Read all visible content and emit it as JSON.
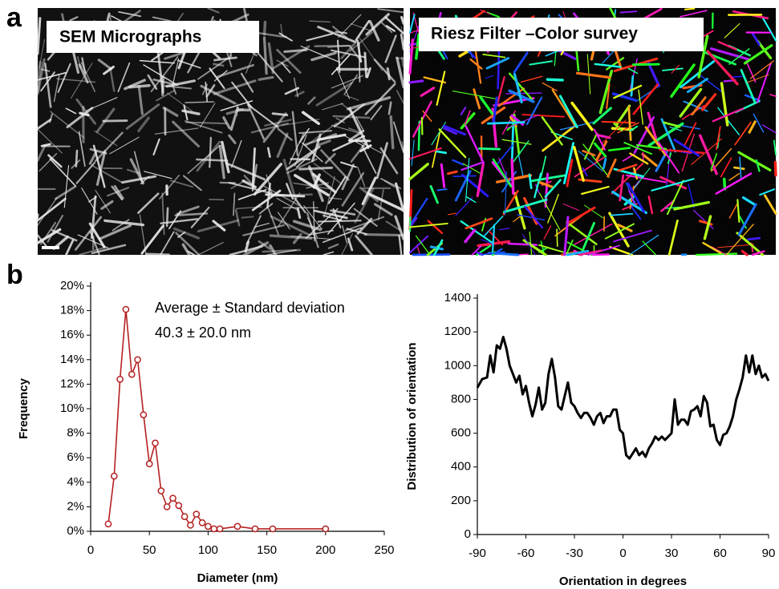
{
  "panels": {
    "a": {
      "label": "a",
      "images": [
        {
          "caption": "SEM Micrographs"
        },
        {
          "caption": "Riesz Filter –Color survey"
        }
      ]
    },
    "b": {
      "label": "b"
    }
  },
  "chart_data": [
    {
      "type": "line",
      "markers": true,
      "color": "#b52020",
      "xlabel": "Diameter (nm)",
      "ylabel": "Frequency",
      "annotations": [
        "Average ± Standard deviation",
        "40.3 ± 20.0 nm"
      ],
      "x": [
        15,
        20,
        25,
        30,
        35,
        40,
        45,
        50,
        55,
        60,
        65,
        70,
        75,
        80,
        85,
        90,
        95,
        100,
        105,
        110,
        125,
        140,
        155,
        200
      ],
      "values": [
        0.6,
        4.5,
        12.4,
        18.1,
        12.8,
        14.0,
        9.5,
        5.5,
        7.2,
        3.3,
        2.0,
        2.7,
        2.1,
        1.2,
        0.5,
        1.4,
        0.7,
        0.4,
        0.2,
        0.2,
        0.4,
        0.2,
        0.2,
        0.2
      ],
      "xlim": [
        0,
        250
      ],
      "xticks": [
        0,
        50,
        100,
        150,
        200,
        250
      ],
      "ylim": [
        0,
        20
      ],
      "yticks": [
        {
          "value": 0,
          "label": "0%"
        },
        {
          "value": 2,
          "label": "2%"
        },
        {
          "value": 4,
          "label": "4%"
        },
        {
          "value": 6,
          "label": "6%"
        },
        {
          "value": 8,
          "label": "8%"
        },
        {
          "value": 10,
          "label": "10%"
        },
        {
          "value": 12,
          "label": "12%"
        },
        {
          "value": 14,
          "label": "14%"
        },
        {
          "value": 16,
          "label": "16%"
        },
        {
          "value": 18,
          "label": "18%"
        },
        {
          "value": 20,
          "label": "20%"
        }
      ]
    },
    {
      "type": "line",
      "markers": false,
      "color": "#000000",
      "xlabel": "Orientation in degrees",
      "ylabel": "Distribution of orientation",
      "x": [
        -90,
        -87,
        -84,
        -82,
        -80,
        -78,
        -76,
        -74,
        -72,
        -70,
        -68,
        -66,
        -64,
        -62,
        -60,
        -58,
        -56,
        -54,
        -52,
        -50,
        -48,
        -46,
        -44,
        -42,
        -40,
        -38,
        -36,
        -34,
        -32,
        -30,
        -28,
        -26,
        -24,
        -22,
        -20,
        -18,
        -16,
        -14,
        -12,
        -10,
        -8,
        -6,
        -4,
        -2,
        0,
        2,
        4,
        6,
        8,
        10,
        12,
        14,
        16,
        18,
        20,
        22,
        24,
        26,
        28,
        30,
        32,
        34,
        36,
        38,
        40,
        42,
        44,
        46,
        48,
        50,
        52,
        54,
        56,
        58,
        60,
        62,
        64,
        66,
        68,
        70,
        72,
        74,
        76,
        78,
        80,
        82,
        84,
        86,
        88,
        90
      ],
      "values": [
        870,
        920,
        930,
        1060,
        960,
        1120,
        1100,
        1170,
        1100,
        1000,
        950,
        900,
        940,
        830,
        880,
        780,
        700,
        770,
        870,
        740,
        780,
        950,
        1040,
        930,
        760,
        740,
        820,
        900,
        780,
        760,
        720,
        690,
        720,
        720,
        690,
        650,
        700,
        720,
        660,
        700,
        700,
        740,
        740,
        620,
        600,
        470,
        450,
        480,
        510,
        470,
        490,
        460,
        510,
        540,
        580,
        560,
        580,
        560,
        580,
        600,
        800,
        650,
        680,
        680,
        650,
        730,
        740,
        760,
        700,
        820,
        780,
        640,
        650,
        560,
        530,
        590,
        600,
        640,
        700,
        800,
        860,
        930,
        1060,
        960,
        1060,
        950,
        1000,
        930,
        950,
        910
      ],
      "xlim": [
        -90,
        90
      ],
      "xticks": [
        -90,
        -60,
        -30,
        0,
        30,
        60,
        90
      ],
      "ylim": [
        0,
        1400
      ],
      "yticks": [
        0,
        200,
        400,
        600,
        800,
        1000,
        1200,
        1400
      ]
    }
  ]
}
